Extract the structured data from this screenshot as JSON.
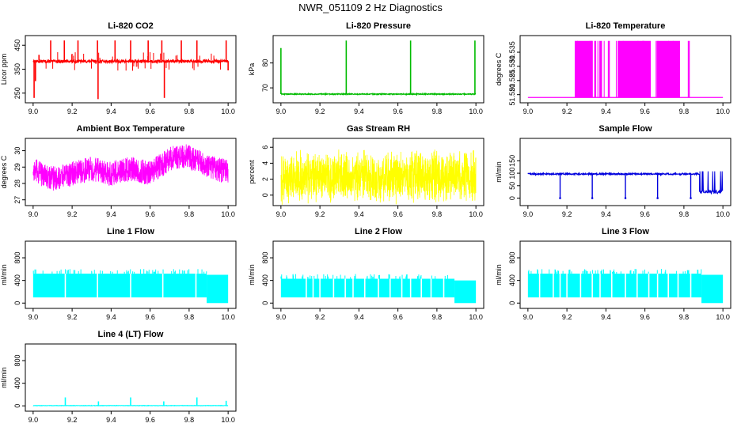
{
  "page_title": "NWR_051109  2 Hz Diagnostics",
  "chart_data": [
    {
      "type": "line",
      "title": "Li-820 CO2",
      "ylabel": "Licor ppm",
      "color": "#ff0000",
      "xlim": [
        9.0,
        10.0
      ],
      "ylim": [
        220,
        480
      ],
      "xticks": [
        "9.0",
        "9.2",
        "9.4",
        "9.6",
        "9.8",
        "10.0"
      ],
      "yticks": [
        "250",
        "350",
        "450"
      ],
      "baseline": 383,
      "noise": 6,
      "events": [
        {
          "x": 9.005,
          "y": 230
        },
        {
          "x": 9.012,
          "y": 300
        },
        {
          "x": 9.03,
          "y": 410
        },
        {
          "x": 9.09,
          "y": 470
        },
        {
          "x": 9.16,
          "y": 470
        },
        {
          "x": 9.23,
          "y": 470
        },
        {
          "x": 9.33,
          "y": 470
        },
        {
          "x": 9.333,
          "y": 225
        },
        {
          "x": 9.42,
          "y": 470
        },
        {
          "x": 9.5,
          "y": 470
        },
        {
          "x": 9.59,
          "y": 470
        },
        {
          "x": 9.66,
          "y": 470
        },
        {
          "x": 9.673,
          "y": 230
        },
        {
          "x": 9.76,
          "y": 470
        },
        {
          "x": 9.84,
          "y": 470
        },
        {
          "x": 9.99,
          "y": 470
        },
        {
          "x": 10.0,
          "y": 345
        }
      ]
    },
    {
      "type": "line",
      "title": "Li-820 Pressure",
      "ylabel": "kPa",
      "color": "#00bb00",
      "xlim": [
        9.0,
        10.0
      ],
      "ylim": [
        65,
        90
      ],
      "xticks": [
        "9.0",
        "9.2",
        "9.4",
        "9.6",
        "9.8",
        "10.0"
      ],
      "yticks": [
        "70",
        "80"
      ],
      "baseline": 67.5,
      "noise": 0.2,
      "events": [
        {
          "x": 9.0,
          "y": 86
        },
        {
          "x": 9.335,
          "y": 89
        },
        {
          "x": 9.665,
          "y": 89
        },
        {
          "x": 9.995,
          "y": 89
        }
      ]
    },
    {
      "type": "line",
      "title": "Li-820 Temperature",
      "ylabel": "degrees C",
      "color": "#ff00ff",
      "xlim": [
        9.0,
        10.0
      ],
      "ylim": [
        51.518,
        51.54
      ],
      "xticks": [
        "9.0",
        "9.2",
        "9.4",
        "9.6",
        "9.8",
        "10.0"
      ],
      "yticks": [
        "51.520",
        "51.525",
        "51.530",
        "51.535"
      ],
      "low": 51.519,
      "high": 51.539,
      "high_segments": [
        [
          9.24,
          9.33
        ],
        [
          9.34,
          9.35
        ],
        [
          9.37,
          9.38
        ],
        [
          9.41,
          9.42
        ],
        [
          9.46,
          9.63
        ],
        [
          9.66,
          9.78
        ],
        [
          9.82,
          9.83
        ]
      ]
    },
    {
      "type": "line",
      "title": "Ambient Box Temperature",
      "ylabel": "degrees C",
      "color": "#ff00ff",
      "xlim": [
        9.0,
        10.0
      ],
      "ylim": [
        26.8,
        30.6
      ],
      "xticks": [
        "9.0",
        "9.2",
        "9.4",
        "9.6",
        "9.8",
        "10.0"
      ],
      "yticks": [
        "27",
        "28",
        "29",
        "30"
      ],
      "trend": [
        {
          "x": 9.0,
          "y": 28.8
        },
        {
          "x": 9.1,
          "y": 28.3
        },
        {
          "x": 9.2,
          "y": 28.6
        },
        {
          "x": 9.3,
          "y": 28.9
        },
        {
          "x": 9.4,
          "y": 28.6
        },
        {
          "x": 9.5,
          "y": 28.9
        },
        {
          "x": 9.6,
          "y": 28.6
        },
        {
          "x": 9.7,
          "y": 29.5
        },
        {
          "x": 9.78,
          "y": 29.7
        },
        {
          "x": 9.9,
          "y": 29.0
        },
        {
          "x": 10.0,
          "y": 28.7
        }
      ],
      "noise": 0.75
    },
    {
      "type": "line",
      "title": "Gas Stream RH",
      "ylabel": "percent",
      "color": "#ffff00",
      "xlim": [
        9.0,
        10.0
      ],
      "ylim": [
        -1,
        6.8
      ],
      "xticks": [
        "9.0",
        "9.2",
        "9.4",
        "9.6",
        "9.8",
        "10.0"
      ],
      "yticks": [
        "0",
        "2",
        "4",
        "6"
      ],
      "center": 2.3,
      "noise": 3.6
    },
    {
      "type": "line",
      "title": "Sample Flow",
      "ylabel": "ml/min",
      "color": "#0000dd",
      "xlim": [
        9.0,
        10.0
      ],
      "ylim": [
        -20,
        230
      ],
      "xticks": [
        "9.0",
        "9.2",
        "9.4",
        "9.6",
        "9.8",
        "10.0"
      ],
      "yticks": [
        "0",
        "50",
        "100",
        "150"
      ],
      "baseline": 97,
      "noise": 3,
      "dips": [
        9.165,
        9.33,
        9.5,
        9.665,
        9.835
      ],
      "dip_y": 0,
      "tail": {
        "start": 9.88,
        "low": 25,
        "high": 108
      }
    },
    {
      "type": "area",
      "title": "Line 1 Flow",
      "ylabel": "ml/min",
      "color": "#00ffff",
      "xlim": [
        9.0,
        10.0
      ],
      "ylim": [
        -50,
        1050
      ],
      "xticks": [
        "9.0",
        "9.2",
        "9.4",
        "9.6",
        "9.8",
        "10.0"
      ],
      "yticks": [
        "0",
        "400",
        "800"
      ],
      "lower": 100,
      "upper": 520,
      "gaps": [
        9.165,
        9.33,
        9.5,
        9.665,
        9.835
      ],
      "tail": {
        "start": 9.89,
        "low": 0,
        "high": 500
      }
    },
    {
      "type": "area",
      "title": "Line 2 Flow",
      "ylabel": "ml/min",
      "color": "#00ffff",
      "xlim": [
        9.0,
        10.0
      ],
      "ylim": [
        -50,
        1050
      ],
      "xticks": [
        "9.0",
        "9.2",
        "9.4",
        "9.6",
        "9.8",
        "10.0"
      ],
      "yticks": [
        "0",
        "400",
        "800"
      ],
      "lower": 100,
      "upper": 430,
      "gaps": [
        9.165,
        9.33,
        9.5,
        9.665,
        9.835,
        9.13,
        9.2,
        9.27,
        9.37,
        9.43,
        9.56,
        9.62,
        9.72,
        9.77
      ],
      "tail": {
        "start": 9.89,
        "low": 0,
        "high": 400
      }
    },
    {
      "type": "area",
      "title": "Line 3 Flow",
      "ylabel": "ml/min",
      "color": "#00ffff",
      "xlim": [
        9.0,
        10.0
      ],
      "ylim": [
        -50,
        1050
      ],
      "xticks": [
        "9.0",
        "9.2",
        "9.4",
        "9.6",
        "9.8",
        "10.0"
      ],
      "yticks": [
        "0",
        "400",
        "800"
      ],
      "lower": 100,
      "upper": 520,
      "gaps": [
        9.165,
        9.33,
        9.5,
        9.665,
        9.835,
        9.06,
        9.13,
        9.2,
        9.27,
        9.37,
        9.43,
        9.56,
        9.62,
        9.72,
        9.77
      ],
      "tail": {
        "start": 9.89,
        "low": 0,
        "high": 500
      }
    },
    {
      "type": "line",
      "title": "Line 4 (LT) Flow",
      "ylabel": "ml/min",
      "color": "#00ffff",
      "xlim": [
        9.0,
        10.0
      ],
      "ylim": [
        -50,
        1050
      ],
      "xticks": [
        "9.0",
        "9.2",
        "9.4",
        "9.6",
        "9.8",
        "10.0"
      ],
      "yticks": [
        "0",
        "400",
        "800"
      ],
      "baseline": 5,
      "noise": 3,
      "spikes": [
        {
          "x": 9.165,
          "y": 150
        },
        {
          "x": 9.335,
          "y": 80
        },
        {
          "x": 9.5,
          "y": 150
        },
        {
          "x": 9.67,
          "y": 80
        },
        {
          "x": 9.84,
          "y": 150
        },
        {
          "x": 9.99,
          "y": 90
        }
      ]
    }
  ]
}
